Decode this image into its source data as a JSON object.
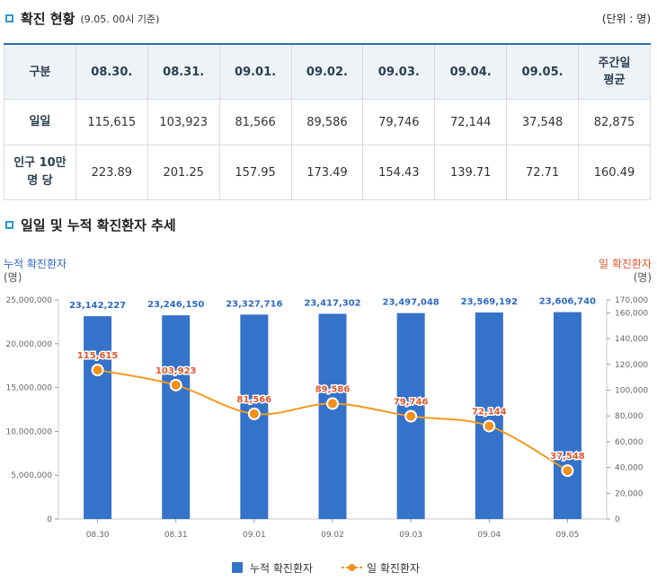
{
  "summary": {
    "title": "확진 현황",
    "subtitle": "(9.05. 00시 기준)",
    "unit": "(단위 : 명)",
    "headers": [
      "구분",
      "08.30.",
      "08.31.",
      "09.01.",
      "09.02.",
      "09.03.",
      "09.04.",
      "09.05.",
      "주간일 평균"
    ],
    "rows": [
      {
        "label": "일일",
        "values": [
          "115,615",
          "103,923",
          "81,566",
          "89,586",
          "79,746",
          "72,144",
          "37,548",
          "82,875"
        ]
      },
      {
        "label": "인구 10만 명 당",
        "values": [
          "223.89",
          "201.25",
          "157.95",
          "173.49",
          "154.43",
          "139.71",
          "72.71",
          "160.49"
        ]
      }
    ]
  },
  "trend_section": {
    "title": "일일 및 누적 확진환자 추세"
  },
  "colors": {
    "bar": "#3572c9",
    "line": "#f39a1e",
    "marker": "#f5901c",
    "left_axis_title": "#2f68c0",
    "right_axis_title": "#e2562c",
    "section_square": "#2d97d3"
  },
  "chart_data": {
    "type": "bar+line",
    "categories": [
      "08.30",
      "08.31",
      "09.01",
      "09.02",
      "09.03",
      "09.04",
      "09.05"
    ],
    "series": [
      {
        "name": "누적 확진환자",
        "type": "bar",
        "axis": "left",
        "values": [
          23142227,
          23246150,
          23327716,
          23417302,
          23497048,
          23569192,
          23606740
        ],
        "labels": [
          "23,142,227",
          "23,246,150",
          "23,327,716",
          "23,417,302",
          "23,497,048",
          "23,569,192",
          "23,606,740"
        ]
      },
      {
        "name": "일 확진환자",
        "type": "line",
        "axis": "right",
        "values": [
          115615,
          103923,
          81566,
          89586,
          79746,
          72144,
          37548
        ],
        "labels": [
          "115,615",
          "103,923",
          "81,566",
          "89,586",
          "79,746",
          "72,144",
          "37,548"
        ]
      }
    ],
    "left_axis": {
      "title": "누적 확진환자",
      "unit": "(명)",
      "range": [
        0,
        25000000
      ],
      "ticks": [
        0,
        5000000,
        10000000,
        15000000,
        20000000,
        25000000
      ],
      "tick_labels": [
        "0",
        "5,000,000",
        "10,000,000",
        "15,000,000",
        "20,000,000",
        "25,000,000"
      ]
    },
    "right_axis": {
      "title": "일 확진환자",
      "unit": "(명)",
      "range": [
        0,
        170000
      ],
      "ticks": [
        0,
        20000,
        40000,
        60000,
        80000,
        100000,
        120000,
        140000,
        160000,
        170000
      ],
      "tick_labels": [
        "0",
        "20,000",
        "40,000",
        "60,000",
        "80,000",
        "100,000",
        "120,000",
        "140,000",
        "160,000",
        "170,000"
      ]
    },
    "legend": {
      "position": "bottom-center",
      "items": [
        "누적 확진환자",
        "일 확진환자"
      ]
    },
    "grid": false
  }
}
